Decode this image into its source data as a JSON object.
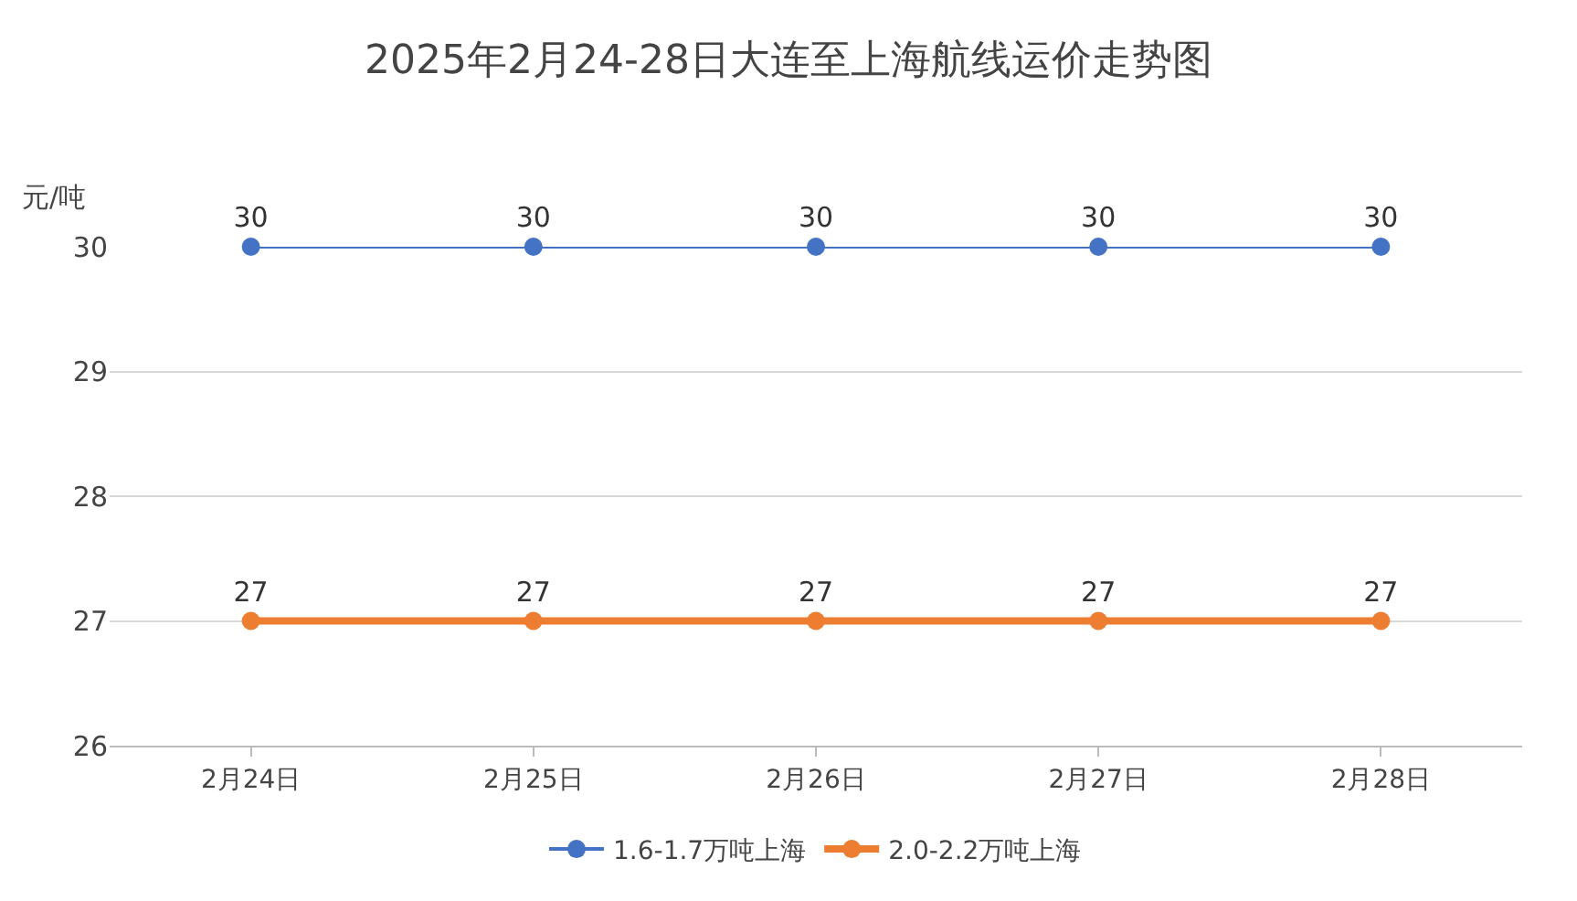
{
  "chart_data": {
    "type": "line",
    "title": "2025年2月24-28日大连至上海航线运价走势图",
    "ylabel": "元/吨",
    "categories": [
      "2月24日",
      "2月25日",
      "2月26日",
      "2月27日",
      "2月28日"
    ],
    "series": [
      {
        "name": "1.6-1.7万吨上海",
        "color": "#4472c4",
        "values": [
          30,
          30,
          30,
          30,
          30
        ]
      },
      {
        "name": "2.0-2.2万吨上海",
        "color": "#ed7d31",
        "values": [
          27,
          27,
          27,
          27,
          27
        ]
      }
    ],
    "ylim": [
      26,
      30
    ],
    "yticks": [
      26,
      27,
      28,
      29,
      30
    ],
    "grid": "y",
    "legend": "bottom",
    "marker": "circle",
    "data_labels": true
  }
}
